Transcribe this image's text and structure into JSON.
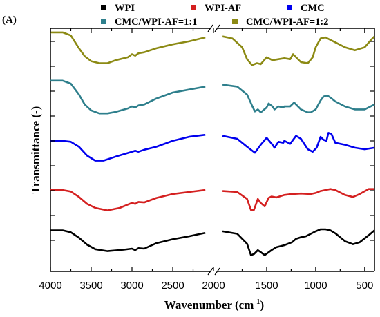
{
  "chart_data": {
    "type": "line",
    "panel_label": "(A)",
    "xlabel": "Wavenumber (cm",
    "xlabel_superscript": "-1",
    "xlabel_suffix": ")",
    "ylabel": "Transmittance (-)",
    "x_reversed": true,
    "x_axis_break": true,
    "x_segments": [
      {
        "xlim": [
          4000,
          2000
        ],
        "ticks": [
          "4000",
          "3500",
          "3000",
          "2500",
          "2000"
        ]
      },
      {
        "xlim": [
          2000,
          400
        ],
        "ticks": [
          "1500",
          "1000",
          "500"
        ]
      }
    ],
    "y_ticks_labeled": false,
    "legend_placement": "top",
    "series": [
      {
        "name": "WPI",
        "color": "#000000",
        "offset": 0,
        "points": [
          [
            4000,
            0.62
          ],
          [
            3850,
            0.62
          ],
          [
            3750,
            0.58
          ],
          [
            3650,
            0.47
          ],
          [
            3550,
            0.33
          ],
          [
            3450,
            0.24
          ],
          [
            3300,
            0.2
          ],
          [
            3100,
            0.23
          ],
          [
            3000,
            0.25
          ],
          [
            2960,
            0.22
          ],
          [
            2920,
            0.26
          ],
          [
            2850,
            0.25
          ],
          [
            2700,
            0.36
          ],
          [
            2500,
            0.44
          ],
          [
            2300,
            0.5
          ],
          [
            2100,
            0.57
          ],
          [
            1950,
            0.6
          ],
          [
            1800,
            0.55
          ],
          [
            1700,
            0.35
          ],
          [
            1660,
            0.12
          ],
          [
            1630,
            0.14
          ],
          [
            1590,
            0.22
          ],
          [
            1560,
            0.18
          ],
          [
            1520,
            0.12
          ],
          [
            1450,
            0.22
          ],
          [
            1400,
            0.28
          ],
          [
            1320,
            0.32
          ],
          [
            1240,
            0.38
          ],
          [
            1200,
            0.45
          ],
          [
            1150,
            0.48
          ],
          [
            1100,
            0.5
          ],
          [
            1050,
            0.55
          ],
          [
            1000,
            0.6
          ],
          [
            950,
            0.64
          ],
          [
            900,
            0.64
          ],
          [
            850,
            0.62
          ],
          [
            800,
            0.56
          ],
          [
            700,
            0.4
          ],
          [
            620,
            0.34
          ],
          [
            550,
            0.38
          ],
          [
            460,
            0.52
          ],
          [
            400,
            0.62
          ]
        ]
      },
      {
        "name": "WPI-AF",
        "color": "#d42020",
        "offset": 1.0,
        "points": [
          [
            4000,
            0.48
          ],
          [
            3850,
            0.48
          ],
          [
            3750,
            0.45
          ],
          [
            3650,
            0.34
          ],
          [
            3550,
            0.2
          ],
          [
            3450,
            0.12
          ],
          [
            3300,
            0.07
          ],
          [
            3150,
            0.12
          ],
          [
            3000,
            0.22
          ],
          [
            2960,
            0.2
          ],
          [
            2920,
            0.24
          ],
          [
            2850,
            0.23
          ],
          [
            2700,
            0.32
          ],
          [
            2500,
            0.4
          ],
          [
            2300,
            0.44
          ],
          [
            2100,
            0.48
          ],
          [
            1950,
            0.46
          ],
          [
            1800,
            0.44
          ],
          [
            1700,
            0.3
          ],
          [
            1660,
            0.08
          ],
          [
            1630,
            0.08
          ],
          [
            1590,
            0.3
          ],
          [
            1560,
            0.22
          ],
          [
            1520,
            0.15
          ],
          [
            1480,
            0.32
          ],
          [
            1450,
            0.35
          ],
          [
            1400,
            0.33
          ],
          [
            1320,
            0.38
          ],
          [
            1240,
            0.4
          ],
          [
            1150,
            0.41
          ],
          [
            1050,
            0.4
          ],
          [
            1000,
            0.42
          ],
          [
            950,
            0.46
          ],
          [
            900,
            0.48
          ],
          [
            850,
            0.5
          ],
          [
            800,
            0.48
          ],
          [
            700,
            0.38
          ],
          [
            620,
            0.34
          ],
          [
            550,
            0.4
          ],
          [
            460,
            0.5
          ],
          [
            400,
            0.5
          ]
        ]
      },
      {
        "name": "CMC",
        "color": "#0000ee",
        "offset": 2.0,
        "points": [
          [
            4000,
            0.52
          ],
          [
            3850,
            0.52
          ],
          [
            3750,
            0.5
          ],
          [
            3650,
            0.4
          ],
          [
            3550,
            0.22
          ],
          [
            3450,
            0.12
          ],
          [
            3350,
            0.12
          ],
          [
            3200,
            0.2
          ],
          [
            3000,
            0.3
          ],
          [
            2960,
            0.32
          ],
          [
            2920,
            0.3
          ],
          [
            2850,
            0.34
          ],
          [
            2700,
            0.4
          ],
          [
            2500,
            0.52
          ],
          [
            2300,
            0.6
          ],
          [
            2100,
            0.64
          ],
          [
            1950,
            0.62
          ],
          [
            1800,
            0.56
          ],
          [
            1700,
            0.4
          ],
          [
            1620,
            0.28
          ],
          [
            1560,
            0.44
          ],
          [
            1500,
            0.58
          ],
          [
            1440,
            0.44
          ],
          [
            1420,
            0.38
          ],
          [
            1380,
            0.5
          ],
          [
            1330,
            0.48
          ],
          [
            1320,
            0.52
          ],
          [
            1260,
            0.46
          ],
          [
            1200,
            0.62
          ],
          [
            1150,
            0.56
          ],
          [
            1080,
            0.35
          ],
          [
            1030,
            0.3
          ],
          [
            990,
            0.38
          ],
          [
            950,
            0.6
          ],
          [
            920,
            0.54
          ],
          [
            890,
            0.52
          ],
          [
            870,
            0.68
          ],
          [
            840,
            0.66
          ],
          [
            800,
            0.48
          ],
          [
            700,
            0.44
          ],
          [
            600,
            0.38
          ],
          [
            500,
            0.35
          ],
          [
            400,
            0.38
          ]
        ]
      },
      {
        "name": "CMC/WPI-AF=1:1",
        "color": "#2e7f8c",
        "offset": 3.0,
        "points": [
          [
            4000,
            0.78
          ],
          [
            3850,
            0.78
          ],
          [
            3750,
            0.72
          ],
          [
            3650,
            0.5
          ],
          [
            3580,
            0.3
          ],
          [
            3500,
            0.18
          ],
          [
            3400,
            0.12
          ],
          [
            3300,
            0.12
          ],
          [
            3200,
            0.15
          ],
          [
            3050,
            0.22
          ],
          [
            3000,
            0.26
          ],
          [
            2960,
            0.24
          ],
          [
            2920,
            0.28
          ],
          [
            2850,
            0.3
          ],
          [
            2700,
            0.42
          ],
          [
            2500,
            0.54
          ],
          [
            2300,
            0.6
          ],
          [
            2100,
            0.66
          ],
          [
            1950,
            0.7
          ],
          [
            1800,
            0.66
          ],
          [
            1700,
            0.5
          ],
          [
            1650,
            0.28
          ],
          [
            1620,
            0.16
          ],
          [
            1590,
            0.2
          ],
          [
            1560,
            0.14
          ],
          [
            1500,
            0.24
          ],
          [
            1480,
            0.32
          ],
          [
            1440,
            0.26
          ],
          [
            1420,
            0.2
          ],
          [
            1380,
            0.26
          ],
          [
            1330,
            0.24
          ],
          [
            1320,
            0.26
          ],
          [
            1260,
            0.26
          ],
          [
            1220,
            0.34
          ],
          [
            1200,
            0.3
          ],
          [
            1150,
            0.2
          ],
          [
            1080,
            0.14
          ],
          [
            1050,
            0.14
          ],
          [
            1000,
            0.2
          ],
          [
            950,
            0.38
          ],
          [
            920,
            0.46
          ],
          [
            880,
            0.48
          ],
          [
            850,
            0.44
          ],
          [
            800,
            0.36
          ],
          [
            700,
            0.26
          ],
          [
            600,
            0.2
          ],
          [
            500,
            0.2
          ],
          [
            400,
            0.3
          ]
        ]
      },
      {
        "name": "CMC/WPI-AF=1:2",
        "color": "#8c8a14",
        "offset": 4.0,
        "points": [
          [
            4000,
            0.8
          ],
          [
            3850,
            0.8
          ],
          [
            3750,
            0.74
          ],
          [
            3650,
            0.48
          ],
          [
            3580,
            0.32
          ],
          [
            3500,
            0.22
          ],
          [
            3400,
            0.18
          ],
          [
            3300,
            0.18
          ],
          [
            3200,
            0.24
          ],
          [
            3050,
            0.3
          ],
          [
            3000,
            0.36
          ],
          [
            2960,
            0.33
          ],
          [
            2920,
            0.38
          ],
          [
            2850,
            0.4
          ],
          [
            2700,
            0.48
          ],
          [
            2500,
            0.56
          ],
          [
            2300,
            0.62
          ],
          [
            2100,
            0.7
          ],
          [
            1950,
            0.72
          ],
          [
            1850,
            0.68
          ],
          [
            1750,
            0.5
          ],
          [
            1700,
            0.26
          ],
          [
            1650,
            0.14
          ],
          [
            1600,
            0.18
          ],
          [
            1560,
            0.16
          ],
          [
            1500,
            0.3
          ],
          [
            1440,
            0.24
          ],
          [
            1380,
            0.26
          ],
          [
            1320,
            0.28
          ],
          [
            1260,
            0.26
          ],
          [
            1230,
            0.36
          ],
          [
            1200,
            0.3
          ],
          [
            1150,
            0.2
          ],
          [
            1080,
            0.18
          ],
          [
            1030,
            0.3
          ],
          [
            1000,
            0.5
          ],
          [
            950,
            0.68
          ],
          [
            900,
            0.7
          ],
          [
            860,
            0.66
          ],
          [
            800,
            0.6
          ],
          [
            700,
            0.5
          ],
          [
            600,
            0.44
          ],
          [
            500,
            0.5
          ],
          [
            430,
            0.66
          ],
          [
            400,
            0.72
          ]
        ]
      }
    ]
  }
}
